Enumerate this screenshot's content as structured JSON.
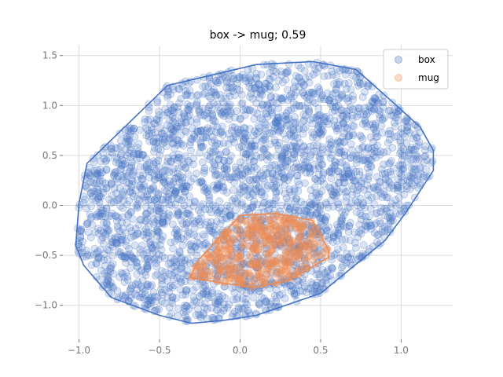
{
  "chart_data": {
    "type": "scatter",
    "title": "box -> mug; 0.59",
    "xlabel": "",
    "ylabel": "",
    "xlim": [
      -1.1,
      1.32
    ],
    "ylim": [
      -1.34,
      1.6
    ],
    "xticks": [
      -1.0,
      -0.5,
      0.0,
      0.5,
      1.0
    ],
    "xtick_labels": [
      "−1.0",
      "−0.5",
      "0.0",
      "0.5",
      "1.0"
    ],
    "yticks": [
      -1.0,
      -0.5,
      0.0,
      0.5,
      1.0,
      1.5
    ],
    "ytick_labels": [
      "−1.0",
      "−0.5",
      "0.0",
      "0.5",
      "1.0",
      "1.5"
    ],
    "grid": true,
    "legend": "top-right",
    "series": [
      {
        "name": "box",
        "color": "#4472c4",
        "point_count": 3000,
        "hull": [
          [
            -1.0,
            0.02
          ],
          [
            -0.95,
            0.42
          ],
          [
            -0.45,
            1.2
          ],
          [
            0.1,
            1.41
          ],
          [
            0.45,
            1.44
          ],
          [
            0.72,
            1.36
          ],
          [
            0.95,
            1.03
          ],
          [
            1.12,
            0.78
          ],
          [
            1.2,
            0.55
          ],
          [
            1.2,
            0.35
          ],
          [
            1.03,
            -0.07
          ],
          [
            0.9,
            -0.35
          ],
          [
            0.5,
            -0.88
          ],
          [
            0.1,
            -1.1
          ],
          [
            -0.1,
            -1.15
          ],
          [
            -0.3,
            -1.18
          ],
          [
            -0.5,
            -1.1
          ],
          [
            -0.8,
            -0.92
          ],
          [
            -0.97,
            -0.6
          ],
          [
            -1.02,
            -0.4
          ]
        ]
      },
      {
        "name": "mug",
        "color": "#ed8b52",
        "point_count": 450,
        "hull": [
          [
            -0.31,
            -0.72
          ],
          [
            -0.26,
            -0.55
          ],
          [
            0.0,
            -0.1
          ],
          [
            0.22,
            -0.08
          ],
          [
            0.45,
            -0.15
          ],
          [
            0.55,
            -0.45
          ],
          [
            0.55,
            -0.52
          ],
          [
            0.3,
            -0.75
          ],
          [
            0.1,
            -0.82
          ],
          [
            -0.1,
            -0.78
          ]
        ]
      }
    ]
  }
}
